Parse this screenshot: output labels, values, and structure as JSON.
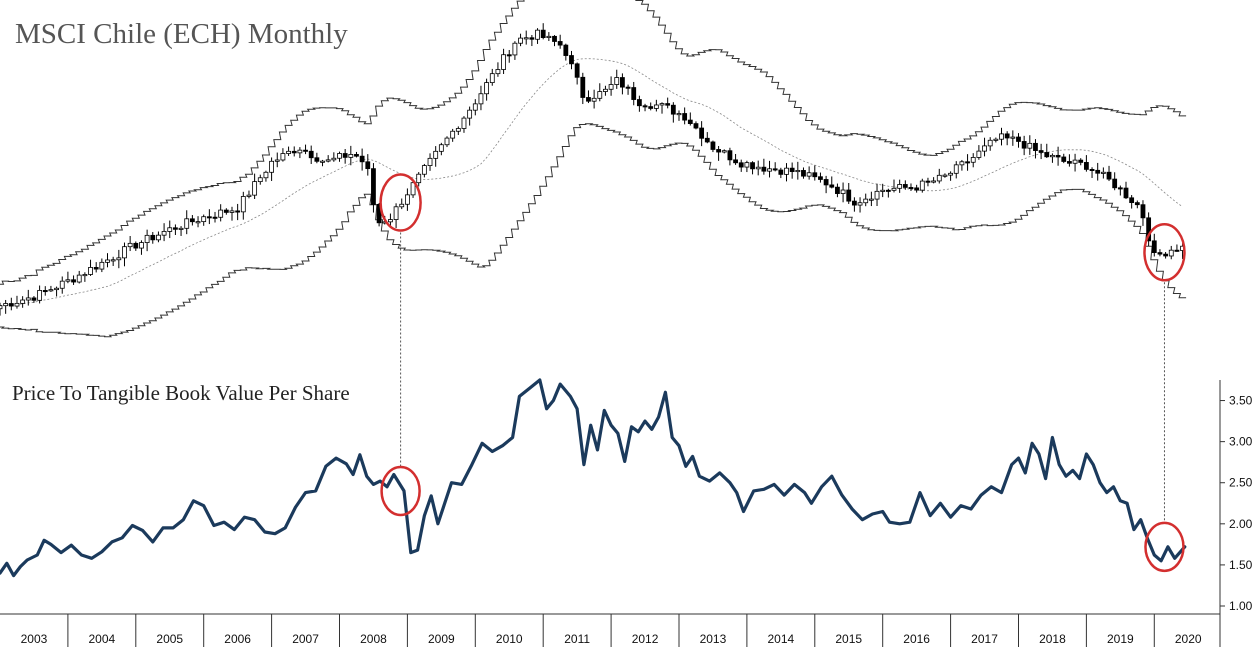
{
  "chart_data": [
    {
      "type": "candlestick",
      "title": "MSCI Chile (ECH) Monthly",
      "bands": [
        "upper Bollinger band",
        "middle band (dotted)",
        "lower Bollinger band"
      ],
      "x_categories": [
        "2003",
        "2004",
        "2005",
        "2006",
        "2007",
        "2008",
        "2009",
        "2010",
        "2011",
        "2012",
        "2013",
        "2014",
        "2015",
        "2016",
        "2017",
        "2018",
        "2019",
        "2020"
      ],
      "price_path_approx": [
        [
          2003.0,
          0.08
        ],
        [
          2003.5,
          0.11
        ],
        [
          2004.0,
          0.16
        ],
        [
          2004.5,
          0.22
        ],
        [
          2005.0,
          0.28
        ],
        [
          2005.5,
          0.33
        ],
        [
          2006.0,
          0.37
        ],
        [
          2006.5,
          0.4
        ],
        [
          2007.0,
          0.55
        ],
        [
          2007.4,
          0.6
        ],
        [
          2007.8,
          0.55
        ],
        [
          2008.2,
          0.58
        ],
        [
          2008.4,
          0.54
        ],
        [
          2008.55,
          0.35
        ],
        [
          2008.75,
          0.37
        ],
        [
          2009.0,
          0.45
        ],
        [
          2009.5,
          0.6
        ],
        [
          2010.0,
          0.75
        ],
        [
          2010.3,
          0.85
        ],
        [
          2010.6,
          0.95
        ],
        [
          2010.9,
          0.97
        ],
        [
          2011.3,
          0.93
        ],
        [
          2011.6,
          0.76
        ],
        [
          2011.9,
          0.78
        ],
        [
          2012.1,
          0.82
        ],
        [
          2012.4,
          0.75
        ],
        [
          2012.8,
          0.73
        ],
        [
          2013.1,
          0.7
        ],
        [
          2013.5,
          0.6
        ],
        [
          2013.9,
          0.55
        ],
        [
          2014.3,
          0.53
        ],
        [
          2014.7,
          0.52
        ],
        [
          2015.2,
          0.48
        ],
        [
          2015.6,
          0.42
        ],
        [
          2016.0,
          0.46
        ],
        [
          2016.5,
          0.47
        ],
        [
          2016.9,
          0.5
        ],
        [
          2017.3,
          0.56
        ],
        [
          2017.7,
          0.63
        ],
        [
          2018.0,
          0.62
        ],
        [
          2018.3,
          0.58
        ],
        [
          2018.7,
          0.55
        ],
        [
          2019.0,
          0.54
        ],
        [
          2019.4,
          0.48
        ],
        [
          2019.8,
          0.4
        ],
        [
          2020.0,
          0.24
        ],
        [
          2020.3,
          0.27
        ]
      ]
    },
    {
      "type": "line",
      "title": "Price To Tangible Book Value Per Share",
      "yticks": [
        "1.00",
        "1.50",
        "2.00",
        "2.50",
        "3.00",
        "3.50"
      ],
      "ylim": [
        1.0,
        3.75
      ],
      "series": [
        {
          "color": "#1b3a5c",
          "points": [
            [
              2003.0,
              1.4
            ],
            [
              2003.1,
              1.52
            ],
            [
              2003.2,
              1.37
            ],
            [
              2003.3,
              1.48
            ],
            [
              2003.4,
              1.56
            ],
            [
              2003.55,
              1.62
            ],
            [
              2003.65,
              1.8
            ],
            [
              2003.75,
              1.75
            ],
            [
              2003.9,
              1.65
            ],
            [
              2004.05,
              1.74
            ],
            [
              2004.2,
              1.62
            ],
            [
              2004.35,
              1.58
            ],
            [
              2004.5,
              1.66
            ],
            [
              2004.65,
              1.78
            ],
            [
              2004.8,
              1.83
            ],
            [
              2004.95,
              1.98
            ],
            [
              2005.1,
              1.92
            ],
            [
              2005.25,
              1.78
            ],
            [
              2005.4,
              1.95
            ],
            [
              2005.55,
              1.95
            ],
            [
              2005.7,
              2.05
            ],
            [
              2005.85,
              2.28
            ],
            [
              2006.0,
              2.22
            ],
            [
              2006.15,
              1.98
            ],
            [
              2006.3,
              2.02
            ],
            [
              2006.45,
              1.93
            ],
            [
              2006.6,
              2.08
            ],
            [
              2006.75,
              2.05
            ],
            [
              2006.9,
              1.9
            ],
            [
              2007.05,
              1.88
            ],
            [
              2007.2,
              1.95
            ],
            [
              2007.35,
              2.2
            ],
            [
              2007.5,
              2.38
            ],
            [
              2007.65,
              2.4
            ],
            [
              2007.8,
              2.7
            ],
            [
              2007.95,
              2.8
            ],
            [
              2008.1,
              2.73
            ],
            [
              2008.2,
              2.6
            ],
            [
              2008.3,
              2.84
            ],
            [
              2008.4,
              2.58
            ],
            [
              2008.5,
              2.48
            ],
            [
              2008.6,
              2.52
            ],
            [
              2008.7,
              2.45
            ],
            [
              2008.8,
              2.6
            ],
            [
              2008.95,
              2.4
            ],
            [
              2009.05,
              1.65
            ],
            [
              2009.15,
              1.68
            ],
            [
              2009.25,
              2.1
            ],
            [
              2009.35,
              2.34
            ],
            [
              2009.45,
              2.0
            ],
            [
              2009.55,
              2.25
            ],
            [
              2009.65,
              2.5
            ],
            [
              2009.8,
              2.48
            ],
            [
              2009.95,
              2.72
            ],
            [
              2010.1,
              2.98
            ],
            [
              2010.25,
              2.88
            ],
            [
              2010.4,
              2.95
            ],
            [
              2010.55,
              3.05
            ],
            [
              2010.65,
              3.55
            ],
            [
              2010.8,
              3.65
            ],
            [
              2010.95,
              3.75
            ],
            [
              2011.05,
              3.4
            ],
            [
              2011.15,
              3.5
            ],
            [
              2011.25,
              3.7
            ],
            [
              2011.4,
              3.55
            ],
            [
              2011.5,
              3.4
            ],
            [
              2011.6,
              2.72
            ],
            [
              2011.7,
              3.2
            ],
            [
              2011.8,
              2.9
            ],
            [
              2011.9,
              3.38
            ],
            [
              2012.0,
              3.2
            ],
            [
              2012.1,
              3.1
            ],
            [
              2012.2,
              2.76
            ],
            [
              2012.3,
              3.18
            ],
            [
              2012.4,
              3.12
            ],
            [
              2012.5,
              3.25
            ],
            [
              2012.6,
              3.15
            ],
            [
              2012.7,
              3.3
            ],
            [
              2012.8,
              3.6
            ],
            [
              2012.9,
              3.05
            ],
            [
              2013.0,
              2.95
            ],
            [
              2013.1,
              2.7
            ],
            [
              2013.2,
              2.82
            ],
            [
              2013.3,
              2.58
            ],
            [
              2013.45,
              2.52
            ],
            [
              2013.6,
              2.62
            ],
            [
              2013.75,
              2.5
            ],
            [
              2013.85,
              2.38
            ],
            [
              2013.95,
              2.15
            ],
            [
              2014.1,
              2.4
            ],
            [
              2014.25,
              2.42
            ],
            [
              2014.4,
              2.48
            ],
            [
              2014.55,
              2.35
            ],
            [
              2014.7,
              2.48
            ],
            [
              2014.85,
              2.38
            ],
            [
              2014.95,
              2.25
            ],
            [
              2015.1,
              2.45
            ],
            [
              2015.25,
              2.58
            ],
            [
              2015.4,
              2.35
            ],
            [
              2015.55,
              2.18
            ],
            [
              2015.7,
              2.05
            ],
            [
              2015.85,
              2.12
            ],
            [
              2016.0,
              2.15
            ],
            [
              2016.1,
              2.02
            ],
            [
              2016.25,
              2.0
            ],
            [
              2016.4,
              2.02
            ],
            [
              2016.55,
              2.38
            ],
            [
              2016.7,
              2.1
            ],
            [
              2016.85,
              2.25
            ],
            [
              2017.0,
              2.08
            ],
            [
              2017.15,
              2.22
            ],
            [
              2017.3,
              2.18
            ],
            [
              2017.45,
              2.35
            ],
            [
              2017.6,
              2.45
            ],
            [
              2017.75,
              2.38
            ],
            [
              2017.9,
              2.72
            ],
            [
              2018.0,
              2.8
            ],
            [
              2018.1,
              2.62
            ],
            [
              2018.2,
              2.98
            ],
            [
              2018.3,
              2.85
            ],
            [
              2018.4,
              2.55
            ],
            [
              2018.5,
              3.05
            ],
            [
              2018.6,
              2.72
            ],
            [
              2018.7,
              2.58
            ],
            [
              2018.8,
              2.65
            ],
            [
              2018.9,
              2.55
            ],
            [
              2019.0,
              2.85
            ],
            [
              2019.1,
              2.72
            ],
            [
              2019.2,
              2.5
            ],
            [
              2019.3,
              2.38
            ],
            [
              2019.4,
              2.45
            ],
            [
              2019.5,
              2.28
            ],
            [
              2019.6,
              2.25
            ],
            [
              2019.7,
              1.93
            ],
            [
              2019.8,
              2.05
            ],
            [
              2019.9,
              1.82
            ],
            [
              2020.0,
              1.62
            ],
            [
              2020.1,
              1.55
            ],
            [
              2020.2,
              1.72
            ],
            [
              2020.3,
              1.58
            ],
            [
              2020.45,
              1.72
            ]
          ]
        }
      ]
    }
  ]
}
